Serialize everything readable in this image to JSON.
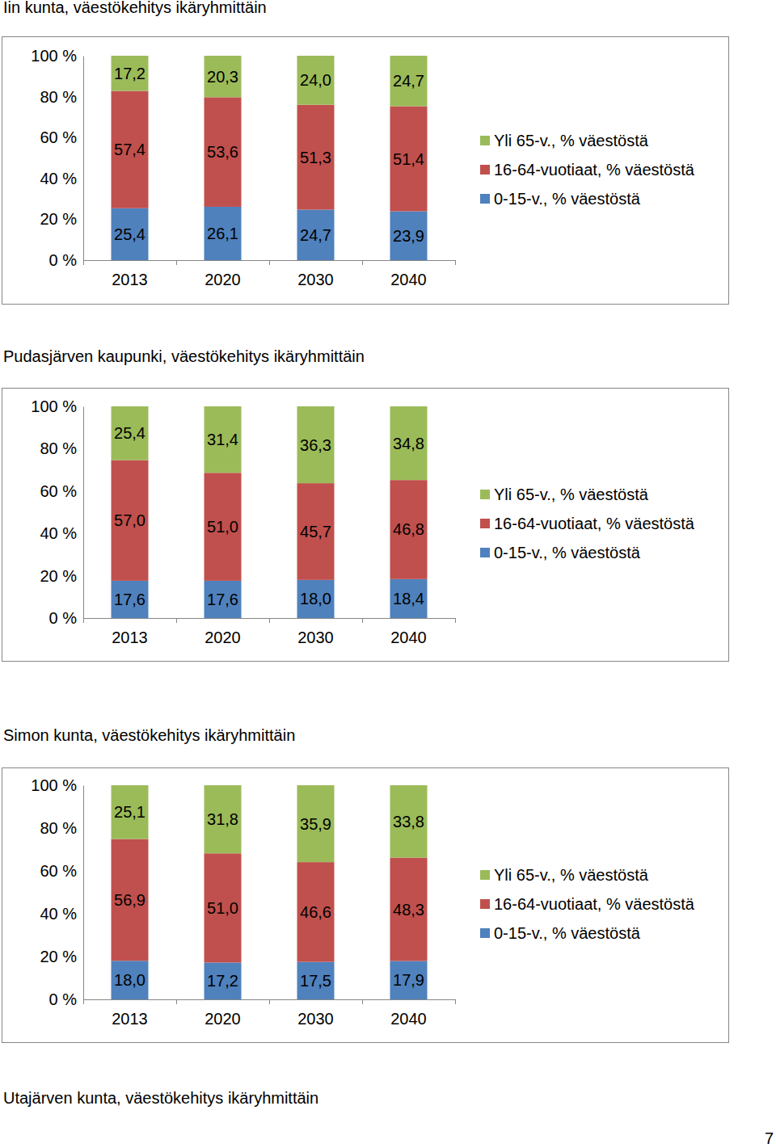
{
  "chart_data": [
    {
      "type": "bar",
      "stacked": true,
      "data_labels": true,
      "grid": false,
      "legend": "right",
      "title": "Iin kunta, väestökehitys ikäryhmittäin",
      "categories": [
        "2013",
        "2020",
        "2030",
        "2040"
      ],
      "ylim": [
        0,
        100
      ],
      "yticks": [
        {
          "value": 0,
          "label": "0 %"
        },
        {
          "value": 20,
          "label": "20 %"
        },
        {
          "value": 40,
          "label": "40 %"
        },
        {
          "value": 60,
          "label": "60 %"
        },
        {
          "value": 80,
          "label": "80 %"
        },
        {
          "value": 100,
          "label": "100 %"
        }
      ],
      "series": [
        {
          "name": "0-15-v., % väestöstä",
          "color": "#4f81bd",
          "values": [
            25.4,
            26.1,
            24.7,
            23.9
          ],
          "value_labels": [
            "25,4",
            "26,1",
            "24,7",
            "23,9"
          ]
        },
        {
          "name": "16-64-vuotiaat, % väestöstä",
          "color": "#c0504d",
          "values": [
            57.4,
            53.6,
            51.3,
            51.4
          ],
          "value_labels": [
            "57,4",
            "53,6",
            "51,3",
            "51,4"
          ]
        },
        {
          "name": "Yli 65-v., % väestöstä",
          "color": "#9bbb59",
          "values": [
            17.2,
            20.3,
            24.0,
            24.7
          ],
          "value_labels": [
            "17,2",
            "20,3",
            "24,0",
            "24,7"
          ]
        }
      ]
    },
    {
      "type": "bar",
      "stacked": true,
      "data_labels": true,
      "grid": false,
      "legend": "right",
      "title": "Pudasjärven kaupunki, väestökehitys ikäryhmittäin",
      "categories": [
        "2013",
        "2020",
        "2030",
        "2040"
      ],
      "ylim": [
        0,
        100
      ],
      "yticks": [
        {
          "value": 0,
          "label": "0 %"
        },
        {
          "value": 20,
          "label": "20 %"
        },
        {
          "value": 40,
          "label": "40 %"
        },
        {
          "value": 60,
          "label": "60 %"
        },
        {
          "value": 80,
          "label": "80 %"
        },
        {
          "value": 100,
          "label": "100 %"
        }
      ],
      "series": [
        {
          "name": "0-15-v., % väestöstä",
          "color": "#4f81bd",
          "values": [
            17.6,
            17.6,
            18.0,
            18.4
          ],
          "value_labels": [
            "17,6",
            "17,6",
            "18,0",
            "18,4"
          ]
        },
        {
          "name": "16-64-vuotiaat, % väestöstä",
          "color": "#c0504d",
          "values": [
            57.0,
            51.0,
            45.7,
            46.8
          ],
          "value_labels": [
            "57,0",
            "51,0",
            "45,7",
            "46,8"
          ]
        },
        {
          "name": "Yli 65-v., % väestöstä",
          "color": "#9bbb59",
          "values": [
            25.4,
            31.4,
            36.3,
            34.8
          ],
          "value_labels": [
            "25,4",
            "31,4",
            "36,3",
            "34,8"
          ]
        }
      ]
    },
    {
      "type": "bar",
      "stacked": true,
      "data_labels": true,
      "grid": false,
      "legend": "right",
      "title": "Simon kunta, väestökehitys ikäryhmittäin",
      "categories": [
        "2013",
        "2020",
        "2030",
        "2040"
      ],
      "ylim": [
        0,
        100
      ],
      "yticks": [
        {
          "value": 0,
          "label": "0 %"
        },
        {
          "value": 20,
          "label": "20 %"
        },
        {
          "value": 40,
          "label": "40 %"
        },
        {
          "value": 60,
          "label": "60 %"
        },
        {
          "value": 80,
          "label": "80 %"
        },
        {
          "value": 100,
          "label": "100 %"
        }
      ],
      "series": [
        {
          "name": "0-15-v., % väestöstä",
          "color": "#4f81bd",
          "values": [
            18.0,
            17.2,
            17.5,
            17.9
          ],
          "value_labels": [
            "18,0",
            "17,2",
            "17,5",
            "17,9"
          ]
        },
        {
          "name": "16-64-vuotiaat, % väestöstä",
          "color": "#c0504d",
          "values": [
            56.9,
            51.0,
            46.6,
            48.3
          ],
          "value_labels": [
            "56,9",
            "51,0",
            "46,6",
            "48,3"
          ]
        },
        {
          "name": "Yli 65-v., % väestöstä",
          "color": "#9bbb59",
          "values": [
            25.1,
            31.8,
            35.9,
            33.8
          ],
          "value_labels": [
            "25,1",
            "31,8",
            "35,9",
            "33,8"
          ]
        }
      ]
    }
  ],
  "page": {
    "heading": "Utajärven kunta, väestökehitys ikäryhmittäin",
    "page_number": "7"
  }
}
